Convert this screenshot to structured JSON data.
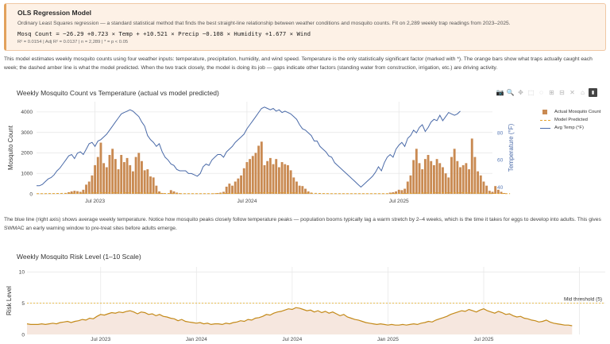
{
  "model": {
    "title": "OLS Regression Model",
    "subtitle": "Ordinary Least Squares regression — a standard statistical method that finds the best straight-line relationship between weather conditions and mosquito counts. Fit on 2,289 weekly trap readings from 2023–2025.",
    "equation": "Mosq Count = −26.29 +0.723 × Temp + +10.521 × Precip −0.108 × Humidity +1.677 × Wind",
    "stats": "R² = 0.0154 | Adj R² = 0.0137 | n = 2,289 | * = p < 0.05"
  },
  "intro_text": "This model estimates weekly mosquito counts using four weather inputs: temperature, precipitation, humidity, and wind speed. Temperature is the only statistically significant factor (marked with *). The orange bars show what traps actually caught each week; the dashed amber line is what the model predicted. When the two track closely, the model is doing its job — gaps indicate other factors (standing water from construction, irrigation, etc.) are driving activity.",
  "mid_text": "The blue line (right axis) shows average weekly temperature. Notice how mosquito peaks closely follow temperature peaks — population booms typically lag a warm stretch by 2–4 weeks, which is the time it takes for eggs to develop into adults. This gives SWMAC an early warning window to pre-treat sites before adults emerge.",
  "toolbar": {
    "buttons": [
      "camera-icon",
      "zoom-icon",
      "pan-icon",
      "box-select-icon",
      "lasso-icon",
      "zoom-in-icon",
      "zoom-out-icon",
      "autoscale-icon",
      "reset-axes-icon",
      "plotly-logo-icon"
    ],
    "glyphs": [
      "📷",
      "🔍",
      "✥",
      "⬚",
      "◌",
      "⊞",
      "⊟",
      "✕",
      "⌂",
      "▮"
    ]
  },
  "colors": {
    "bar": "#c98a52",
    "model_line": "#e3a22e",
    "temp_line": "#4a6aa8",
    "risk_line": "#c48a1a",
    "risk_fill": "#f6e7df",
    "threshold": "#e5b233",
    "box_bg": "#fdf1e6",
    "box_border": "#e3a25c"
  },
  "chart_data": [
    {
      "type": "bar",
      "title": "Weekly Mosquito Count vs Temperature  (actual vs model predicted)",
      "xlabel": "",
      "ylabel": "Mosquito Count",
      "ylabel_right": "Temperature (°F)",
      "ylim": [
        0,
        4500
      ],
      "ylim_right": [
        35,
        103
      ],
      "yticks": [
        0,
        1000,
        2000,
        3000,
        4000
      ],
      "yticks_right": [
        40,
        60,
        80
      ],
      "xrange_weeks": [
        0,
        156
      ],
      "xticks": [
        {
          "week": 20,
          "label": "Jul 2023"
        },
        {
          "week": 72,
          "label": "Jul 2024"
        },
        {
          "week": 124,
          "label": "Jul 2025"
        }
      ],
      "legend": [
        "Actual Mosquito Count",
        "Model Predicted",
        "Avg Temp (°F)"
      ],
      "series": [
        {
          "name": "Actual Mosquito Count",
          "start_week": 0,
          "values": [
            0,
            0,
            0,
            0,
            0,
            0,
            0,
            0,
            0,
            0,
            40,
            80,
            120,
            150,
            130,
            100,
            200,
            450,
            600,
            900,
            1400,
            1800,
            2500,
            1500,
            1300,
            1900,
            2200,
            1700,
            1200,
            1900,
            1550,
            1750,
            1400,
            1100,
            1800,
            2000,
            1600,
            1150,
            1200,
            850,
            800,
            400,
            120,
            40,
            0,
            0,
            180,
            120,
            60,
            30,
            0,
            0,
            0,
            0,
            0,
            0,
            0,
            0,
            0,
            0,
            0,
            20,
            40,
            60,
            100,
            350,
            500,
            400,
            600,
            750,
            900,
            1250,
            1550,
            1700,
            1850,
            2000,
            2350,
            2550,
            1400,
            1600,
            1750,
            1450,
            1700,
            1300,
            1550,
            1450,
            1400,
            1150,
            800,
            600,
            400,
            380,
            250,
            120,
            60,
            0,
            0,
            0,
            0,
            0,
            0,
            0,
            0,
            0,
            0,
            0,
            0,
            0,
            0,
            0,
            0,
            0,
            0,
            0,
            0,
            0,
            0,
            0,
            0,
            0,
            20,
            60,
            80,
            120,
            200,
            180,
            250,
            600,
            900,
            1650,
            2200,
            1500,
            1200,
            1700,
            1900,
            1600,
            1400,
            1700,
            1500,
            1300,
            1000,
            800,
            1800,
            2200,
            1600,
            1300,
            1400,
            1500,
            1200,
            2700,
            1800,
            1100,
            900,
            600,
            400,
            150,
            100,
            380,
            200,
            100,
            40,
            0
          ]
        },
        {
          "name": "Model Predicted",
          "start_week": 0,
          "values_note": "near-flat dashed line",
          "values": [
            10,
            10,
            12,
            12,
            14,
            15,
            16,
            18,
            20,
            22,
            24,
            26,
            28,
            30,
            32,
            34,
            36,
            38,
            40,
            42,
            44,
            46,
            48,
            50,
            50,
            50,
            50,
            50,
            50,
            50,
            49,
            48,
            47,
            46,
            45,
            44,
            42,
            40,
            38,
            36,
            33,
            30,
            27,
            24,
            21,
            18,
            16,
            14,
            12,
            11,
            10,
            10,
            10,
            10,
            10,
            10,
            10,
            10,
            10,
            10,
            11,
            12,
            14,
            16,
            18,
            20,
            22,
            25,
            28,
            31,
            34,
            37,
            40,
            42,
            44,
            46,
            48,
            50,
            50,
            50,
            50,
            50,
            50,
            50,
            49,
            48,
            47,
            46,
            44,
            42,
            40,
            37,
            34,
            31,
            28,
            25,
            22,
            19,
            16,
            14,
            12,
            11,
            10,
            10,
            10,
            10,
            10,
            10,
            10,
            10,
            10,
            10,
            10,
            10,
            10,
            10,
            10,
            10,
            10,
            10,
            11,
            12,
            14,
            16,
            18,
            20,
            22,
            25,
            28,
            31,
            34,
            37,
            40,
            42,
            44,
            46,
            48,
            50,
            50,
            50,
            50,
            50,
            50,
            50,
            49,
            48,
            47,
            46,
            44,
            42,
            40,
            37,
            34,
            31,
            28,
            25,
            22,
            19,
            16,
            14,
            12,
            11,
            10
          ]
        },
        {
          "name": "Avg Temp (°F)",
          "start_week": 0,
          "values": [
            41,
            41,
            42,
            44,
            46,
            47,
            49,
            52,
            54,
            57,
            60,
            63,
            64,
            61,
            65,
            66,
            64,
            68,
            72,
            73,
            70,
            74,
            75,
            77,
            79,
            82,
            85,
            88,
            91,
            94,
            95,
            96,
            97,
            96,
            94,
            92,
            88,
            85,
            78,
            75,
            73,
            70,
            72,
            66,
            62,
            60,
            57,
            56,
            53,
            52,
            52,
            52,
            50,
            50,
            49,
            48,
            50,
            55,
            57,
            56,
            60,
            62,
            64,
            64,
            62,
            66,
            68,
            70,
            73,
            75,
            77,
            79,
            83,
            86,
            89,
            92,
            95,
            98,
            99,
            98,
            97,
            98,
            96,
            97,
            95,
            96,
            95,
            94,
            92,
            90,
            86,
            83,
            82,
            80,
            78,
            74,
            74,
            70,
            68,
            66,
            63,
            62,
            58,
            56,
            54,
            52,
            50,
            48,
            46,
            44,
            42,
            40,
            42,
            44,
            46,
            48,
            51,
            55,
            52,
            58,
            62,
            64,
            62,
            68,
            71,
            73,
            70,
            76,
            78,
            82,
            80,
            84,
            86,
            81,
            84,
            88,
            90,
            89,
            93,
            89,
            92,
            95,
            94,
            93,
            94,
            96
          ]
        }
      ]
    },
    {
      "type": "area",
      "title": "Weekly Mosquito Risk Level (1–10 Scale)",
      "xlabel": "",
      "ylabel": "Risk Level",
      "ylim": [
        0,
        10.8
      ],
      "yticks": [
        0,
        5,
        10
      ],
      "xrange_weeks": [
        0,
        157
      ],
      "xticks": [
        {
          "week": 20,
          "label": "Jul 2023"
        },
        {
          "week": 46,
          "label": "Jan 2024"
        },
        {
          "week": 72,
          "label": "Jul 2024"
        },
        {
          "week": 98,
          "label": "Jan 2025"
        },
        {
          "week": 124,
          "label": "Jul 2025"
        },
        {
          "week": 150,
          "label": ""
        }
      ],
      "threshold": {
        "value": 5,
        "label": "Mid threshold (5)"
      },
      "series": [
        {
          "name": "Risk Level",
          "start_week": 0,
          "values": [
            1.7,
            1.6,
            1.6,
            1.6,
            1.7,
            1.6,
            1.7,
            1.8,
            1.7,
            1.9,
            2.0,
            2.1,
            1.9,
            2.1,
            2.2,
            2.4,
            2.3,
            2.6,
            2.5,
            2.9,
            3.2,
            3.1,
            3.3,
            3.5,
            3.4,
            3.6,
            3.5,
            3.7,
            3.8,
            3.6,
            3.3,
            3.6,
            3.5,
            3.2,
            3.3,
            3.0,
            3.2,
            2.9,
            2.8,
            2.6,
            2.5,
            2.2,
            2.4,
            2.1,
            2.0,
            1.9,
            1.8,
            1.9,
            1.7,
            1.8,
            1.6,
            1.7,
            1.7,
            1.6,
            1.8,
            1.7,
            1.9,
            2.0,
            2.2,
            2.1,
            2.4,
            2.3,
            2.6,
            2.7,
            2.9,
            3.2,
            3.1,
            3.4,
            3.6,
            3.7,
            3.9,
            4.1,
            4.0,
            4.3,
            4.2,
            4.0,
            3.8,
            3.9,
            3.6,
            3.8,
            3.5,
            3.7,
            3.4,
            3.6,
            3.3,
            3.0,
            3.2,
            2.8,
            2.6,
            2.4,
            2.3,
            2.1,
            1.9,
            1.8,
            1.7,
            1.6,
            1.7,
            1.6,
            1.5,
            1.6,
            1.5,
            1.5,
            1.6,
            1.5,
            1.6,
            1.7,
            1.6,
            1.8,
            1.9,
            2.1,
            2.0,
            2.3,
            2.5,
            2.7,
            2.9,
            3.2,
            3.4,
            3.6,
            3.8,
            3.7,
            4.0,
            3.8,
            3.6,
            3.9,
            4.1,
            3.8,
            3.6,
            3.4,
            3.7,
            3.5,
            3.2,
            3.3,
            3.0,
            2.8,
            2.9,
            2.6,
            2.5,
            2.3,
            2.2,
            2.0,
            2.1,
            2.3,
            2.0,
            1.8,
            1.7,
            1.6,
            1.5,
            1.5,
            1.4
          ]
        }
      ]
    }
  ]
}
